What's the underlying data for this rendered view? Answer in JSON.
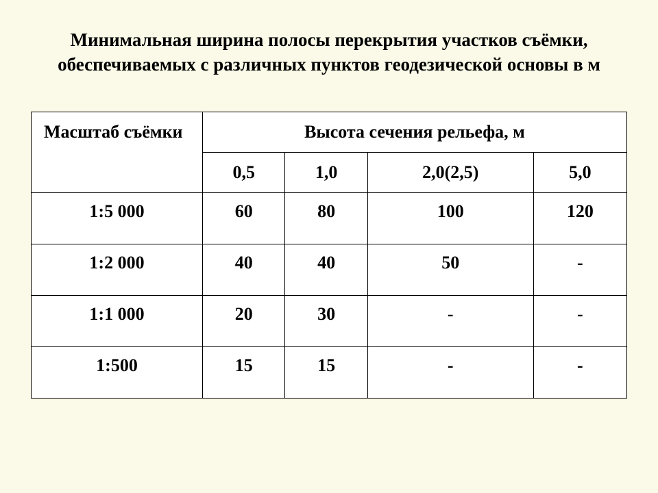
{
  "title": "Минимальная ширина полосы перекрытия участков съёмки, обеспечиваемых с различных пунктов геодезической основы в м",
  "table": {
    "type": "table",
    "header_col1": "Масштаб съёмки",
    "header_col2_span": "Высота сечения рельефа, м",
    "sub_headers": [
      "0,5",
      "1,0",
      "2,0(2,5)",
      "5,0"
    ],
    "rows": [
      {
        "scale": "1:5 000",
        "values": [
          "60",
          "80",
          "100",
          "120"
        ]
      },
      {
        "scale": "1:2 000",
        "values": [
          "40",
          "40",
          "50",
          "-"
        ]
      },
      {
        "scale": "1:1 000",
        "values": [
          "20",
          "30",
          "-",
          "-"
        ]
      },
      {
        "scale": "1:500",
        "values": [
          "15",
          "15",
          "-",
          "-"
        ]
      }
    ],
    "background_color": "#ffffff",
    "border_color": "#000000",
    "text_color": "#000000",
    "font_size_pt": 20,
    "column_widths": [
      "29%",
      "14%",
      "14%",
      "22%",
      "21%"
    ]
  },
  "page_background": "#fbfae8"
}
